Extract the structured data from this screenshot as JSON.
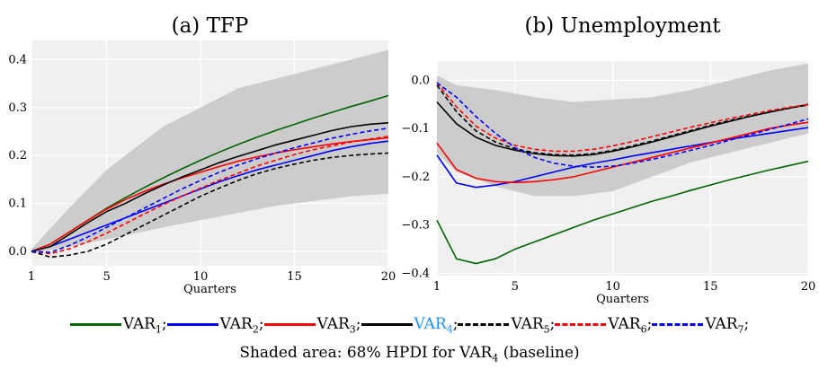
{
  "chart_data": [
    {
      "type": "line",
      "title": "(a) TFP",
      "xlabel": "Quarters",
      "xlim": [
        1,
        20
      ],
      "ylim": [
        -0.03,
        0.44
      ],
      "xticks": [
        1,
        5,
        10,
        15,
        20
      ],
      "yticks": [
        0.0,
        0.1,
        0.2,
        0.3,
        0.4
      ],
      "ytick_labels": [
        "0.0",
        "0.1",
        "0.2",
        "0.3",
        "0.4"
      ],
      "background": "#f0f0f0",
      "grid": true,
      "band": {
        "x": [
          1,
          3,
          5,
          8,
          10,
          12,
          14,
          16,
          18,
          20
        ],
        "lower": [
          -0.005,
          0.01,
          0.025,
          0.05,
          0.065,
          0.08,
          0.095,
          0.105,
          0.115,
          0.12
        ],
        "upper": [
          0.005,
          0.09,
          0.17,
          0.26,
          0.3,
          0.34,
          0.36,
          0.38,
          0.4,
          0.42
        ],
        "color": "#cccccc"
      },
      "series": [
        {
          "key": "VAR1",
          "color": "#006400",
          "dash": false,
          "x": [
            1,
            2,
            3,
            4,
            5,
            6,
            7,
            8,
            9,
            10,
            11,
            12,
            13,
            14,
            15,
            16,
            17,
            18,
            19,
            20
          ],
          "values": [
            0.0,
            0.015,
            0.04,
            0.065,
            0.09,
            0.112,
            0.133,
            0.153,
            0.172,
            0.19,
            0.207,
            0.223,
            0.238,
            0.252,
            0.265,
            0.278,
            0.29,
            0.302,
            0.313,
            0.325
          ]
        },
        {
          "key": "VAR2",
          "color": "#0000ff",
          "dash": false,
          "x": [
            1,
            2,
            3,
            4,
            5,
            6,
            7,
            8,
            9,
            10,
            11,
            12,
            13,
            14,
            15,
            16,
            17,
            18,
            19,
            20
          ],
          "values": [
            0.0,
            0.01,
            0.025,
            0.04,
            0.055,
            0.07,
            0.085,
            0.1,
            0.115,
            0.13,
            0.145,
            0.158,
            0.17,
            0.18,
            0.19,
            0.2,
            0.21,
            0.218,
            0.225,
            0.23
          ]
        },
        {
          "key": "VAR3",
          "color": "#ff0000",
          "dash": false,
          "x": [
            1,
            2,
            3,
            4,
            5,
            6,
            7,
            8,
            9,
            10,
            11,
            12,
            13,
            14,
            15,
            16,
            17,
            18,
            19,
            20
          ],
          "values": [
            0.0,
            0.015,
            0.04,
            0.065,
            0.088,
            0.108,
            0.125,
            0.14,
            0.153,
            0.165,
            0.177,
            0.188,
            0.197,
            0.205,
            0.212,
            0.218,
            0.224,
            0.229,
            0.233,
            0.237
          ]
        },
        {
          "key": "VAR4",
          "color": "#000000",
          "dash": false,
          "x": [
            1,
            2,
            3,
            4,
            5,
            6,
            7,
            8,
            9,
            10,
            11,
            12,
            13,
            14,
            15,
            16,
            17,
            18,
            19,
            20
          ],
          "values": [
            0.0,
            0.01,
            0.035,
            0.06,
            0.083,
            0.1,
            0.12,
            0.138,
            0.155,
            0.17,
            0.185,
            0.198,
            0.21,
            0.222,
            0.232,
            0.242,
            0.252,
            0.26,
            0.265,
            0.268
          ]
        },
        {
          "key": "VAR5",
          "color": "#000000",
          "dash": true,
          "x": [
            1,
            2,
            3,
            4,
            5,
            6,
            7,
            8,
            9,
            10,
            11,
            12,
            13,
            14,
            15,
            16,
            17,
            18,
            19,
            20
          ],
          "values": [
            0.0,
            -0.012,
            -0.008,
            0.0,
            0.015,
            0.035,
            0.055,
            0.075,
            0.095,
            0.115,
            0.132,
            0.148,
            0.162,
            0.173,
            0.182,
            0.19,
            0.196,
            0.2,
            0.203,
            0.205
          ]
        },
        {
          "key": "VAR6",
          "color": "#ff0000",
          "dash": true,
          "x": [
            1,
            2,
            3,
            4,
            5,
            6,
            7,
            8,
            9,
            10,
            11,
            12,
            13,
            14,
            15,
            16,
            17,
            18,
            19,
            20
          ],
          "values": [
            0.0,
            -0.005,
            0.005,
            0.02,
            0.038,
            0.058,
            0.078,
            0.097,
            0.115,
            0.132,
            0.148,
            0.163,
            0.178,
            0.19,
            0.202,
            0.212,
            0.22,
            0.228,
            0.234,
            0.24
          ]
        },
        {
          "key": "VAR7",
          "color": "#0000ff",
          "dash": true,
          "x": [
            1,
            2,
            3,
            4,
            5,
            6,
            7,
            8,
            9,
            10,
            11,
            12,
            13,
            14,
            15,
            16,
            17,
            18,
            19,
            20
          ],
          "values": [
            0.0,
            -0.002,
            0.012,
            0.03,
            0.05,
            0.07,
            0.09,
            0.11,
            0.13,
            0.148,
            0.165,
            0.18,
            0.193,
            0.205,
            0.216,
            0.226,
            0.236,
            0.244,
            0.251,
            0.257
          ]
        }
      ]
    },
    {
      "type": "line",
      "title": "(b) Unemployment",
      "xlabel": "Quarters",
      "xlim": [
        1,
        20
      ],
      "ylim": [
        -0.405,
        0.04
      ],
      "xticks": [
        1,
        5,
        10,
        15,
        20
      ],
      "yticks": [
        0.0,
        -0.1,
        -0.2,
        -0.3,
        -0.4
      ],
      "ytick_labels": [
        "0.0",
        "−0.1",
        "−0.2",
        "−0.3",
        "−0.4"
      ],
      "background": "#f0f0f0",
      "grid": true,
      "band": {
        "x": [
          1,
          2,
          4,
          6,
          8,
          10,
          12,
          14,
          16,
          18,
          20
        ],
        "lower": [
          -0.15,
          -0.19,
          -0.22,
          -0.24,
          -0.24,
          -0.23,
          -0.2,
          -0.17,
          -0.15,
          -0.13,
          -0.11
        ],
        "upper": [
          0.01,
          -0.01,
          -0.02,
          -0.035,
          -0.045,
          -0.04,
          -0.035,
          -0.02,
          0.0,
          0.02,
          0.035
        ],
        "color": "#cccccc"
      },
      "series": [
        {
          "key": "VAR1",
          "color": "#006400",
          "dash": false,
          "x": [
            1,
            2,
            3,
            4,
            5,
            6,
            7,
            8,
            9,
            10,
            11,
            12,
            13,
            14,
            15,
            16,
            17,
            18,
            19,
            20
          ],
          "values": [
            -0.29,
            -0.37,
            -0.38,
            -0.37,
            -0.35,
            -0.335,
            -0.32,
            -0.305,
            -0.29,
            -0.277,
            -0.264,
            -0.251,
            -0.24,
            -0.228,
            -0.217,
            -0.206,
            -0.196,
            -0.186,
            -0.177,
            -0.168
          ]
        },
        {
          "key": "VAR2",
          "color": "#0000ff",
          "dash": false,
          "x": [
            1,
            2,
            3,
            4,
            5,
            6,
            7,
            8,
            9,
            10,
            11,
            12,
            13,
            14,
            15,
            16,
            17,
            18,
            19,
            20
          ],
          "values": [
            -0.155,
            -0.213,
            -0.222,
            -0.217,
            -0.21,
            -0.2,
            -0.19,
            -0.18,
            -0.172,
            -0.165,
            -0.157,
            -0.15,
            -0.143,
            -0.136,
            -0.129,
            -0.122,
            -0.116,
            -0.11,
            -0.104,
            -0.098
          ]
        },
        {
          "key": "VAR3",
          "color": "#ff0000",
          "dash": false,
          "x": [
            1,
            2,
            3,
            4,
            5,
            6,
            7,
            8,
            9,
            10,
            11,
            12,
            13,
            14,
            15,
            16,
            17,
            18,
            19,
            20
          ],
          "values": [
            -0.13,
            -0.185,
            -0.203,
            -0.21,
            -0.212,
            -0.21,
            -0.206,
            -0.2,
            -0.19,
            -0.18,
            -0.17,
            -0.16,
            -0.15,
            -0.14,
            -0.13,
            -0.12,
            -0.11,
            -0.1,
            -0.093,
            -0.087
          ]
        },
        {
          "key": "VAR4",
          "color": "#000000",
          "dash": false,
          "x": [
            1,
            2,
            3,
            4,
            5,
            6,
            7,
            8,
            9,
            10,
            11,
            12,
            13,
            14,
            15,
            16,
            17,
            18,
            19,
            20
          ],
          "values": [
            -0.045,
            -0.09,
            -0.118,
            -0.135,
            -0.145,
            -0.152,
            -0.156,
            -0.157,
            -0.154,
            -0.147,
            -0.138,
            -0.128,
            -0.117,
            -0.106,
            -0.095,
            -0.085,
            -0.075,
            -0.066,
            -0.058,
            -0.05
          ]
        },
        {
          "key": "VAR5",
          "color": "#000000",
          "dash": true,
          "x": [
            1,
            2,
            3,
            4,
            5,
            6,
            7,
            8,
            9,
            10,
            11,
            12,
            13,
            14,
            15,
            16,
            17,
            18,
            19,
            20
          ],
          "values": [
            -0.01,
            -0.065,
            -0.105,
            -0.128,
            -0.142,
            -0.15,
            -0.154,
            -0.155,
            -0.152,
            -0.145,
            -0.136,
            -0.126,
            -0.115,
            -0.104,
            -0.093,
            -0.083,
            -0.074,
            -0.066,
            -0.058,
            -0.051
          ]
        },
        {
          "key": "VAR6",
          "color": "#ff0000",
          "dash": true,
          "x": [
            1,
            2,
            3,
            4,
            5,
            6,
            7,
            8,
            9,
            10,
            11,
            12,
            13,
            14,
            15,
            16,
            17,
            18,
            19,
            20
          ],
          "values": [
            -0.005,
            -0.055,
            -0.095,
            -0.12,
            -0.135,
            -0.143,
            -0.147,
            -0.147,
            -0.143,
            -0.136,
            -0.127,
            -0.117,
            -0.107,
            -0.097,
            -0.088,
            -0.079,
            -0.071,
            -0.063,
            -0.056,
            -0.05
          ]
        },
        {
          "key": "VAR7",
          "color": "#0000ff",
          "dash": true,
          "x": [
            1,
            2,
            3,
            4,
            5,
            6,
            7,
            8,
            9,
            10,
            11,
            12,
            13,
            14,
            15,
            16,
            17,
            18,
            19,
            20
          ],
          "values": [
            -0.005,
            -0.035,
            -0.075,
            -0.11,
            -0.14,
            -0.16,
            -0.172,
            -0.178,
            -0.18,
            -0.178,
            -0.172,
            -0.164,
            -0.155,
            -0.145,
            -0.135,
            -0.124,
            -0.113,
            -0.102,
            -0.091,
            -0.08
          ]
        }
      ]
    }
  ],
  "legend": {
    "items": [
      {
        "base": "VAR",
        "sub": "1",
        "sep": ";",
        "color": "#006400",
        "text_color": "#000000",
        "dash": false
      },
      {
        "base": "VAR",
        "sub": "2",
        "sep": ";",
        "color": "#0000ff",
        "text_color": "#000000",
        "dash": false
      },
      {
        "base": "VAR",
        "sub": "3",
        "sep": ";",
        "color": "#ff0000",
        "text_color": "#000000",
        "dash": false
      },
      {
        "base": "VAR",
        "sub": "4",
        "sep": ";",
        "color": "#000000",
        "text_color": "#1e90ff",
        "dash": false
      },
      {
        "base": "VAR",
        "sub": "5",
        "sep": ";",
        "color": "#000000",
        "text_color": "#000000",
        "dash": true
      },
      {
        "base": "VAR",
        "sub": "6",
        "sep": ";",
        "color": "#ff0000",
        "text_color": "#000000",
        "dash": true
      },
      {
        "base": "VAR",
        "sub": "7",
        "sep": ";",
        "color": "#0000ff",
        "text_color": "#000000",
        "dash": true
      }
    ]
  },
  "caption": {
    "prefix": "Shaded area: 68% HPDI for VAR",
    "sub": "4",
    "suffix": " (baseline)"
  }
}
